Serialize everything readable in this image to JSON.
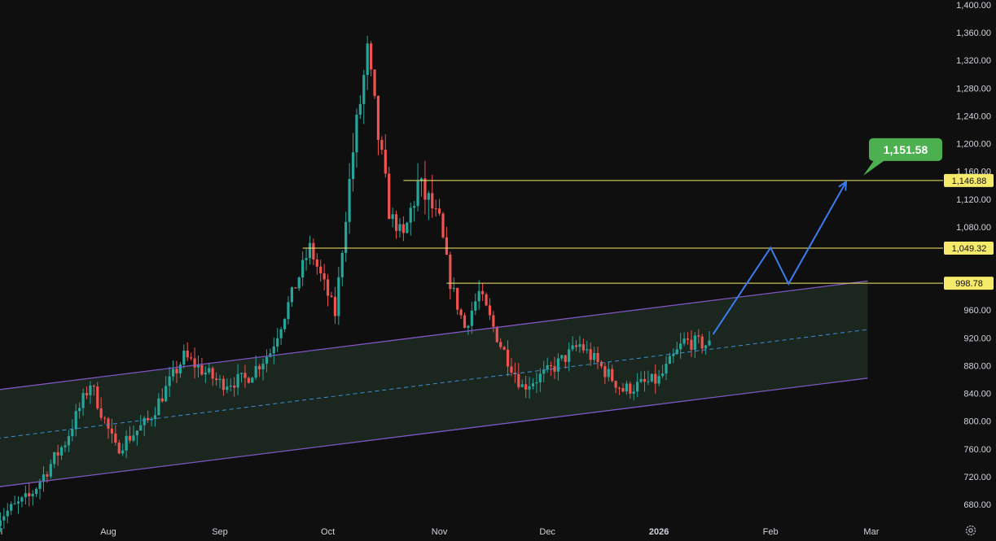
{
  "chart_data": {
    "type": "candlestick",
    "title": "",
    "xlabel": "",
    "ylabel": "",
    "ylim": [
      665,
      1400
    ],
    "y_ticks": [
      680,
      720,
      760,
      800,
      840,
      880,
      920,
      960,
      1080,
      1120,
      1160,
      1200,
      1240,
      1280,
      1320,
      1360,
      1400
    ],
    "y_tick_labels": [
      "680.00",
      "720.00",
      "760.00",
      "800.00",
      "840.00",
      "880.00",
      "920.00",
      "960.00",
      "1,080.00",
      "1,120.00",
      "1,160.00",
      "1,200.00",
      "1,240.00",
      "1,280.00",
      "1,320.00",
      "1,360.00",
      "1,400.00"
    ],
    "x_range": [
      "2025-07-01",
      "2026-03-15"
    ],
    "x_ticks": [
      {
        "date": "2025-07-01",
        "label": "l"
      },
      {
        "date": "2025-08-01",
        "label": "Aug"
      },
      {
        "date": "2025-09-01",
        "label": "Sep"
      },
      {
        "date": "2025-10-01",
        "label": "Oct"
      },
      {
        "date": "2025-11-01",
        "label": "Nov"
      },
      {
        "date": "2025-12-01",
        "label": "Dec"
      },
      {
        "date": "2026-01-01",
        "label": "2026"
      },
      {
        "date": "2026-02-01",
        "label": "Feb"
      },
      {
        "date": "2026-03-01",
        "label": "Mar"
      }
    ],
    "grid": false,
    "colors": {
      "up": "#26a69a",
      "down": "#ef5350",
      "channel": "#7e57c2",
      "level": "#f5ea6a",
      "projection": "#3d7cf0",
      "target": "#4caf50"
    },
    "anchors": [
      {
        "date": "2025-07-01",
        "price": 660
      },
      {
        "date": "2025-07-10",
        "price": 690
      },
      {
        "date": "2025-07-20",
        "price": 770
      },
      {
        "date": "2025-07-27",
        "price": 855
      },
      {
        "date": "2025-08-03",
        "price": 760
      },
      {
        "date": "2025-08-12",
        "price": 800
      },
      {
        "date": "2025-08-22",
        "price": 893
      },
      {
        "date": "2025-09-01",
        "price": 855
      },
      {
        "date": "2025-09-08",
        "price": 860
      },
      {
        "date": "2025-09-15",
        "price": 900
      },
      {
        "date": "2025-09-26",
        "price": 1050
      },
      {
        "date": "2025-10-03",
        "price": 955
      },
      {
        "date": "2025-10-08",
        "price": 1190
      },
      {
        "date": "2025-10-12",
        "price": 1330
      },
      {
        "date": "2025-10-15",
        "price": 1210
      },
      {
        "date": "2025-10-18",
        "price": 1100
      },
      {
        "date": "2025-10-22",
        "price": 1065
      },
      {
        "date": "2025-10-26",
        "price": 1140
      },
      {
        "date": "2025-11-01",
        "price": 1090
      },
      {
        "date": "2025-11-04",
        "price": 1000
      },
      {
        "date": "2025-11-08",
        "price": 935
      },
      {
        "date": "2025-11-12",
        "price": 985
      },
      {
        "date": "2025-11-18",
        "price": 910
      },
      {
        "date": "2025-11-24",
        "price": 850
      },
      {
        "date": "2025-12-01",
        "price": 870
      },
      {
        "date": "2025-12-10",
        "price": 910
      },
      {
        "date": "2025-12-22",
        "price": 845
      },
      {
        "date": "2026-01-01",
        "price": 860
      },
      {
        "date": "2026-01-08",
        "price": 915
      },
      {
        "date": "2026-01-15",
        "price": 910
      }
    ],
    "channel": {
      "upper": [
        {
          "date": "2025-07-01",
          "price": 845
        },
        {
          "date": "2026-02-28",
          "price": 1002
        }
      ],
      "lower": [
        {
          "date": "2025-07-01",
          "price": 705
        },
        {
          "date": "2026-02-28",
          "price": 862
        }
      ],
      "middle": [
        {
          "date": "2025-07-01",
          "price": 775
        },
        {
          "date": "2026-02-28",
          "price": 932
        }
      ],
      "fill_color": "#1c2a21"
    },
    "horizontal_levels": [
      {
        "price": 1146.88,
        "label": "1,146.88",
        "from": "2025-10-22"
      },
      {
        "price": 1049.32,
        "label": "1,049.32",
        "from": "2025-09-24"
      },
      {
        "price": 998.78,
        "label": "998.78",
        "from": "2025-11-03"
      }
    ],
    "projection_path": [
      {
        "date": "2026-01-16",
        "price": 925
      },
      {
        "date": "2026-02-01",
        "price": 1050
      },
      {
        "date": "2026-02-06",
        "price": 998
      },
      {
        "date": "2026-02-22",
        "price": 1145
      }
    ],
    "target": {
      "price": 1151.58,
      "label": "1,151.58"
    }
  },
  "ui": {
    "settings_icon": "gear-icon"
  }
}
